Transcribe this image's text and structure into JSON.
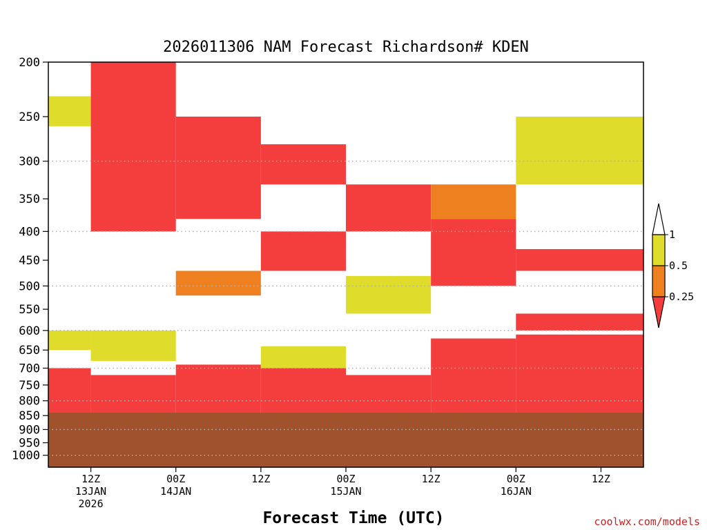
{
  "chart_data": {
    "type": "heatmap",
    "title": "2026011306 NAM Forecast Richardson# KDEN",
    "xlabel": "Forecast Time (UTC)",
    "ylabel": "",
    "credit": "coolwx.com/models",
    "x_range_hours": [
      0,
      84
    ],
    "y_range_hpa": [
      200,
      1050
    ],
    "y_scale": "log-pressure",
    "grid": "dotted",
    "y_ticks": [
      200,
      250,
      300,
      350,
      400,
      450,
      500,
      550,
      600,
      650,
      700,
      750,
      800,
      850,
      900,
      950,
      1000
    ],
    "y_gridlines": [
      300,
      400,
      500,
      600,
      700,
      800,
      900,
      1000
    ],
    "x_ticks": [
      {
        "hour": 6,
        "lines": [
          "12Z",
          "13JAN",
          "2026"
        ]
      },
      {
        "hour": 18,
        "lines": [
          "00Z",
          "14JAN"
        ]
      },
      {
        "hour": 30,
        "lines": [
          "12Z"
        ]
      },
      {
        "hour": 42,
        "lines": [
          "00Z",
          "15JAN"
        ]
      },
      {
        "hour": 54,
        "lines": [
          "12Z"
        ]
      },
      {
        "hour": 66,
        "lines": [
          "00Z",
          "16JAN"
        ]
      },
      {
        "hour": 78,
        "lines": [
          "12Z"
        ]
      }
    ],
    "colorbar": {
      "bins": [
        {
          "label": "< 0.25",
          "color": "#f43d3d"
        },
        {
          "label": "0.25 - 0.5",
          "color": "#ee8020"
        },
        {
          "label": "0.5 - 1",
          "color": "#e0dc2c"
        },
        {
          "label": "> 1",
          "color": "#ffffff"
        }
      ],
      "tick_labels": [
        "0.25",
        "0.5",
        "1"
      ]
    },
    "terrain": {
      "color": "#a0522d",
      "surface_hpa": 840
    },
    "bands_by_hour": [
      {
        "hour_start": 0,
        "hour_end": 6,
        "layers": [
          {
            "p_top": 700,
            "p_bot": 840,
            "bin": "< 0.25"
          },
          {
            "p_top": 600,
            "p_bot": 650,
            "bin": "0.5 - 1"
          },
          {
            "p_top": 230,
            "p_bot": 260,
            "bin": "0.5 - 1"
          }
        ]
      },
      {
        "hour_start": 6,
        "hour_end": 18,
        "layers": [
          {
            "p_top": 200,
            "p_bot": 300,
            "bin": "< 0.25"
          },
          {
            "p_top": 300,
            "p_bot": 400,
            "bin": "< 0.25"
          },
          {
            "p_top": 600,
            "p_bot": 680,
            "bin": "0.5 - 1"
          },
          {
            "p_top": 720,
            "p_bot": 840,
            "bin": "< 0.25"
          }
        ]
      },
      {
        "hour_start": 18,
        "hour_end": 30,
        "layers": [
          {
            "p_top": 250,
            "p_bot": 380,
            "bin": "< 0.25"
          },
          {
            "p_top": 470,
            "p_bot": 520,
            "bin": "0.25 - 0.5"
          },
          {
            "p_top": 690,
            "p_bot": 840,
            "bin": "< 0.25"
          }
        ]
      },
      {
        "hour_start": 30,
        "hour_end": 42,
        "layers": [
          {
            "p_top": 280,
            "p_bot": 330,
            "bin": "< 0.25"
          },
          {
            "p_top": 400,
            "p_bot": 470,
            "bin": "< 0.25"
          },
          {
            "p_top": 640,
            "p_bot": 700,
            "bin": "0.5 - 1"
          },
          {
            "p_top": 700,
            "p_bot": 840,
            "bin": "< 0.25"
          }
        ]
      },
      {
        "hour_start": 42,
        "hour_end": 54,
        "layers": [
          {
            "p_top": 330,
            "p_bot": 400,
            "bin": "< 0.25"
          },
          {
            "p_top": 480,
            "p_bot": 560,
            "bin": "0.5 - 1"
          },
          {
            "p_top": 720,
            "p_bot": 840,
            "bin": "< 0.25"
          }
        ]
      },
      {
        "hour_start": 54,
        "hour_end": 66,
        "layers": [
          {
            "p_top": 380,
            "p_bot": 500,
            "bin": "< 0.25"
          },
          {
            "p_top": 330,
            "p_bot": 380,
            "bin": "0.25 - 0.5"
          },
          {
            "p_top": 620,
            "p_bot": 840,
            "bin": "< 0.25"
          }
        ]
      },
      {
        "hour_start": 66,
        "hour_end": 84,
        "layers": [
          {
            "p_top": 250,
            "p_bot": 330,
            "bin": "0.5 - 1"
          },
          {
            "p_top": 430,
            "p_bot": 470,
            "bin": "< 0.25"
          },
          {
            "p_top": 560,
            "p_bot": 600,
            "bin": "< 0.25"
          },
          {
            "p_top": 610,
            "p_bot": 840,
            "bin": "< 0.25"
          }
        ]
      }
    ]
  }
}
